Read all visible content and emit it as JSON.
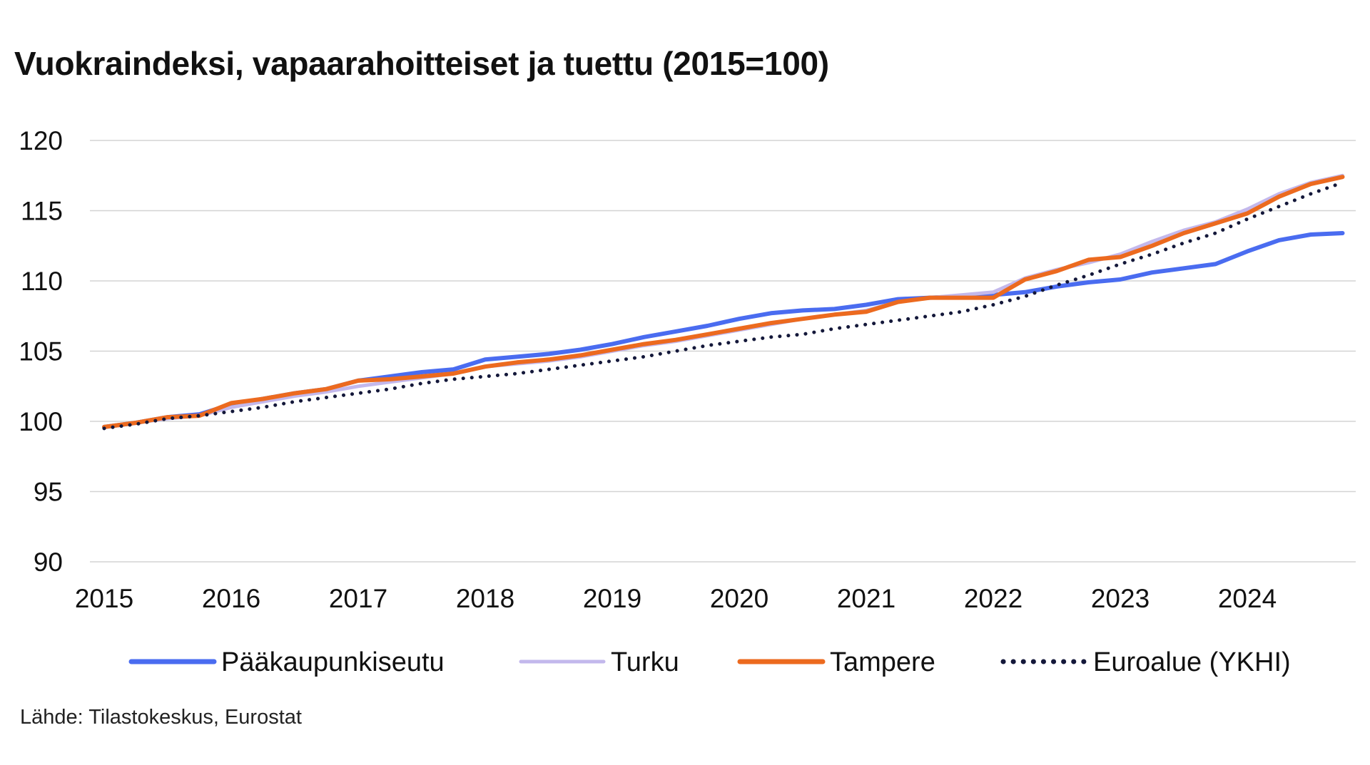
{
  "title": "Vuokraindeksi, vapaarahoitteiset ja tuettu (2015=100)",
  "source": "Lähde: Tilastokeskus, Eurostat",
  "chart_data": {
    "type": "line",
    "title": "Vuokraindeksi, vapaarahoitteiset ja tuettu (2015=100)",
    "xlabel": "",
    "ylabel": "",
    "x_tick_labels": [
      "2015",
      "2016",
      "2017",
      "2018",
      "2019",
      "2020",
      "2021",
      "2022",
      "2023",
      "2024"
    ],
    "y_ticks": [
      90,
      95,
      100,
      105,
      110,
      115,
      120
    ],
    "ylim": [
      90,
      120
    ],
    "grid": true,
    "legend_position": "bottom",
    "x": [
      "2015Q1",
      "2015Q2",
      "2015Q3",
      "2015Q4",
      "2016Q1",
      "2016Q2",
      "2016Q3",
      "2016Q4",
      "2017Q1",
      "2017Q2",
      "2017Q3",
      "2017Q4",
      "2018Q1",
      "2018Q2",
      "2018Q3",
      "2018Q4",
      "2019Q1",
      "2019Q2",
      "2019Q3",
      "2019Q4",
      "2020Q1",
      "2020Q2",
      "2020Q3",
      "2020Q4",
      "2021Q1",
      "2021Q2",
      "2021Q3",
      "2021Q4",
      "2022Q1",
      "2022Q2",
      "2022Q3",
      "2022Q4",
      "2023Q1",
      "2023Q2",
      "2023Q3",
      "2023Q4",
      "2024Q1",
      "2024Q2",
      "2024Q3",
      "2024Q4"
    ],
    "series": [
      {
        "name": "Pääkaupunkiseutu",
        "color": "#4a6cf0",
        "style": "solid",
        "values": [
          99.6,
          99.9,
          100.3,
          100.5,
          101.2,
          101.6,
          102.0,
          102.3,
          102.9,
          103.2,
          103.5,
          103.7,
          104.4,
          104.6,
          104.8,
          105.1,
          105.5,
          106.0,
          106.4,
          106.8,
          107.3,
          107.7,
          107.9,
          108.0,
          108.3,
          108.7,
          108.8,
          108.9,
          109.0,
          109.2,
          109.6,
          109.9,
          110.1,
          110.6,
          110.9,
          111.2,
          112.1,
          112.9,
          113.3,
          113.4
        ]
      },
      {
        "name": "Turku",
        "color": "#c3b8ec",
        "style": "solid",
        "values": [
          99.6,
          99.9,
          100.2,
          100.4,
          101.0,
          101.4,
          101.8,
          102.1,
          102.5,
          102.8,
          103.1,
          103.4,
          103.9,
          104.1,
          104.3,
          104.6,
          105.0,
          105.4,
          105.7,
          106.1,
          106.5,
          106.9,
          107.3,
          107.6,
          107.9,
          108.5,
          108.8,
          109.0,
          109.2,
          110.2,
          110.8,
          111.3,
          111.9,
          112.8,
          113.6,
          114.2,
          115.1,
          116.2,
          117.0,
          117.5
        ]
      },
      {
        "name": "Tampere",
        "color": "#ec6a1f",
        "style": "solid",
        "values": [
          99.6,
          99.9,
          100.3,
          100.4,
          101.3,
          101.6,
          102.0,
          102.3,
          102.9,
          103.0,
          103.2,
          103.4,
          103.9,
          104.2,
          104.4,
          104.7,
          105.1,
          105.5,
          105.8,
          106.2,
          106.6,
          107.0,
          107.3,
          107.6,
          107.8,
          108.5,
          108.8,
          108.8,
          108.8,
          110.1,
          110.7,
          111.5,
          111.7,
          112.5,
          113.4,
          114.1,
          114.8,
          116.0,
          116.9,
          117.4
        ]
      },
      {
        "name": "Euroalue (YKHI)",
        "color": "#14183a",
        "style": "dotted",
        "values": [
          99.5,
          99.8,
          100.2,
          100.4,
          100.7,
          101.0,
          101.4,
          101.7,
          102.0,
          102.3,
          102.7,
          103.0,
          103.2,
          103.4,
          103.7,
          104.0,
          104.3,
          104.6,
          105.0,
          105.4,
          105.7,
          106.0,
          106.2,
          106.6,
          106.9,
          107.2,
          107.5,
          107.8,
          108.3,
          108.9,
          109.7,
          110.4,
          111.2,
          111.9,
          112.7,
          113.4,
          114.4,
          115.3,
          116.2,
          117.0
        ]
      }
    ]
  }
}
